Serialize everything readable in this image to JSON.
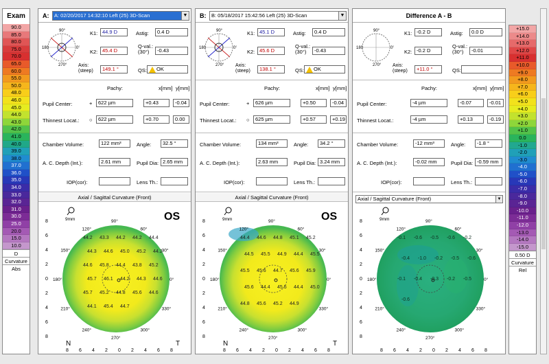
{
  "left_scale": {
    "title": "Exam",
    "values": [
      "90.0",
      "85.0",
      "80.0",
      "75.0",
      "70.0",
      "65.0",
      "60.0",
      "55.0",
      "50.0",
      "48.0",
      "46.0",
      "45.0",
      "44.0",
      "43.0",
      "42.0",
      "41.0",
      "40.0",
      "39.0",
      "38.0",
      "37.0",
      "36.0",
      "35.0",
      "34.0",
      "33.0",
      "32.0",
      "31.0",
      "30.0",
      "25.0",
      "20.0",
      "15.0",
      "10.0"
    ],
    "colors": [
      "#f2a6a6",
      "#e8787a",
      "#e05555",
      "#d83c3c",
      "#d83030",
      "#e85a2a",
      "#ee7a22",
      "#f29a1e",
      "#f6b61c",
      "#f8ce1a",
      "#f2e21c",
      "#e6ec20",
      "#c2e22e",
      "#8ed63a",
      "#52c24a",
      "#2ab45c",
      "#20a888",
      "#20a0b8",
      "#208cd0",
      "#2070d0",
      "#2050c8",
      "#2838b8",
      "#3a2ca8",
      "#4a289c",
      "#5a2494",
      "#6a208c",
      "#7c2c96",
      "#9040a6",
      "#a45ab4",
      "#b478c0",
      "#c497cc"
    ],
    "footer": [
      "D",
      "Curvature",
      "Abs"
    ]
  },
  "right_scale": {
    "values": [
      "+15.0",
      "+14.0",
      "+13.0",
      "+12.0",
      "+11.0",
      "+10.0",
      "+9.0",
      "+8.0",
      "+7.0",
      "+6.0",
      "+5.0",
      "+4.0",
      "+3.0",
      "+2.0",
      "+1.0",
      "0.0",
      "-1.0",
      "-2.0",
      "-3.0",
      "-4.0",
      "-5.0",
      "-6.0",
      "-7.0",
      "-8.0",
      "-9.0",
      "-10.0",
      "-11.0",
      "-12.0",
      "-13.0",
      "-14.0",
      "-15.0"
    ],
    "colors": [
      "#f2a6a6",
      "#ec8a8a",
      "#e66a6a",
      "#e04848",
      "#d83030",
      "#e85a2a",
      "#ee7a22",
      "#f29a1e",
      "#f6b61c",
      "#f8ce1a",
      "#f2e21c",
      "#e6ec20",
      "#c2e22e",
      "#8ed63a",
      "#52c24a",
      "#2ab45c",
      "#22a890",
      "#20a0b8",
      "#208cd0",
      "#2070d0",
      "#2050c8",
      "#2838b8",
      "#3a2ca8",
      "#4a289c",
      "#5a2494",
      "#6a208c",
      "#7c2c96",
      "#9040a6",
      "#a45ab4",
      "#b478c0",
      "#c497cc"
    ],
    "footer": [
      "0.50 D",
      "Curvature",
      "Rel"
    ]
  },
  "panel_a": {
    "label": "A:",
    "exam": "A: 02/20/2017  14:32:10  Left   (25) 3D-Scan",
    "k1_label": "K1:",
    "k1": "44.9 D",
    "k2_label": "K2:",
    "k2": "45.4 D",
    "axis_label": "Axis:\n(steep)",
    "axis": "149.1 °",
    "astig_label": "Astig:",
    "astig": "0.4 D",
    "qval_label": "Q-val.:\n(30°)",
    "qval": "-0.43",
    "qs_label": "QS:",
    "qs": "OK",
    "pachy_hdr": "Pachy:",
    "x_hdr": "x[mm]",
    "y_hdr": "y[mm]",
    "pupil_label": "Pupil Center:",
    "pupil_pachy": "622 µm",
    "pupil_x": "+0.43",
    "pupil_y": "-0.04",
    "thin_label": "Thinnest Locat.:",
    "thin_pachy": "622 µm",
    "thin_x": "+0.70",
    "thin_y": "0.00",
    "cv_label": "Chamber Volume:",
    "cv": "122 mm³",
    "angle_label": "Angle:",
    "angle": "32.5 °",
    "acd_label": "A. C. Depth (Int.):",
    "acd": "2.61 mm",
    "pd_label": "Pupil Dia:",
    "pd": "2.65 mm",
    "iop_label": "IOP(cor):",
    "lens_label": "Lens Th.:",
    "map_title": "Axial / Sagittal Curvature (Front)",
    "eye": "OS",
    "nasal": "N",
    "temporal": "T",
    "map_values": [
      "44.2",
      "43.3",
      "44.2",
      "44.2",
      "44.4",
      "44.3",
      "44.6",
      "45.0",
      "45.2",
      "44.2",
      "44.6",
      "45.8",
      "44.4",
      "43.8",
      "45.2",
      "45.7",
      "46.1",
      "44.2",
      "44.3",
      "44.6",
      "45.7",
      "45.2",
      "44.8",
      "45.6",
      "44.6",
      "44.1",
      "45.4",
      "44.7"
    ]
  },
  "panel_b": {
    "label": "B:",
    "exam": "B: 05/18/2017  15:42:56  Left   (25) 3D-Scan",
    "k1_label": "K1:",
    "k1": "45.1 D",
    "k2_label": "K2:",
    "k2": "45.6 D",
    "axis_label": "Axis:\n(steep)",
    "axis": "138.1 °",
    "astig_label": "Astig:",
    "astig": "0.4 D",
    "qval_label": "Q-val.:\n(30°)",
    "qval": "-0.43",
    "qs_label": "QS:",
    "qs": "OK",
    "pachy_hdr": "Pachy:",
    "x_hdr": "x[mm]",
    "y_hdr": "y[mm]",
    "pupil_label": "Pupil Center:",
    "pupil_pachy": "626 µm",
    "pupil_x": "+0.50",
    "pupil_y": "-0.04",
    "thin_label": "Thinnest Locat.:",
    "thin_pachy": "625 µm",
    "thin_x": "+0.57",
    "thin_y": "+0.19",
    "cv_label": "Chamber Volume:",
    "cv": "134 mm³",
    "angle_label": "Angle:",
    "angle": "34.2 °",
    "acd_label": "A. C. Depth (Int.):",
    "acd": "2.63 mm",
    "pd_label": "Pupil Dia:",
    "pd": "3.24 mm",
    "iop_label": "IOP(cor):",
    "lens_label": "Lens Th.:",
    "map_title": "Axial / Sagittal Curvature (Front)",
    "eye": "OS",
    "nasal": "N",
    "temporal": "T",
    "map_values": [
      "44.4",
      "44.6",
      "44.8",
      "45.1",
      "45.2",
      "44.5",
      "45.5",
      "44.9",
      "44.4",
      "45.5",
      "45.5",
      "45.6",
      "44.7",
      "45.6",
      "45.9",
      "45.6",
      "44.4",
      "45.5",
      "44.4",
      "45.0",
      "44.8",
      "45.6",
      "45.2",
      "44.9"
    ]
  },
  "panel_diff": {
    "title": "Difference A - B",
    "k1_label": "K1:",
    "k1": "-0.2 D",
    "k2_label": "K2:",
    "k2": "-0.2 D",
    "axis_label": "Axis:\n(steep)",
    "axis": "+11.0 °",
    "astig_label": "Astig:",
    "astig": "0.0 D",
    "qval_label": "Q-val.:\n(30°)",
    "qval": "-0.01",
    "qs_label": "QS:",
    "pachy_hdr": "Pachy:",
    "x_hdr": "x[mm]",
    "y_hdr": "y[mm]",
    "pupil_label": "Pupil Center:",
    "pupil_pachy": "-4 µm",
    "pupil_x": "-0.07",
    "pupil_y": "-0.01",
    "thin_label": "Thinnest Locat.:",
    "thin_pachy": "-4 µm",
    "thin_x": "+0.13",
    "thin_y": "-0.19",
    "cv_label": "Chamber Volume:",
    "cv": "-12 mm³",
    "angle_label": "Angle:",
    "angle": "-1.8 °",
    "acd_label": "A. C. Depth (Int.):",
    "acd": "-0.02 mm",
    "pd_label": "Pupil Dia:",
    "pd": "-0.59 mm",
    "iop_label": "IOP(cor):",
    "lens_label": "Lens Th.:",
    "map_select": "Axial / Sagittal Curvature (Front)",
    "map_values": [
      "-0.1",
      "-0.6",
      "-0.5",
      "-0.6",
      "-0.2",
      "-0.4",
      "-1.0",
      "-0.2",
      "-0.5",
      "-0.6",
      "-0.1",
      "-0.4",
      "-0.3",
      "-0.2",
      "-0.5",
      "-0.6"
    ]
  },
  "axes": {
    "ticks": [
      "8",
      "6",
      "4",
      "2",
      "0",
      "2",
      "4",
      "6",
      "8"
    ],
    "mm": "9mm",
    "degrees": [
      "90°",
      "60°",
      "30°",
      "0°",
      "330°",
      "300°",
      "270°",
      "240°",
      "210°",
      "180°",
      "150°",
      "120°"
    ]
  }
}
